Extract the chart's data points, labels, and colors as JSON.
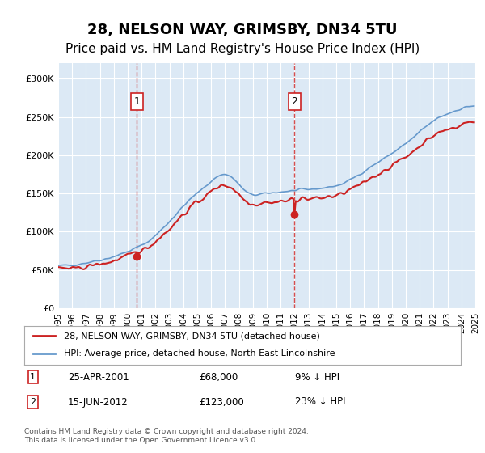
{
  "title": "28, NELSON WAY, GRIMSBY, DN34 5TU",
  "subtitle": "Price paid vs. HM Land Registry's House Price Index (HPI)",
  "title_fontsize": 13,
  "subtitle_fontsize": 11,
  "background_color": "#ffffff",
  "plot_bg_color": "#dce9f5",
  "grid_color": "#ffffff",
  "ylim": [
    0,
    320000
  ],
  "yticks": [
    0,
    50000,
    100000,
    150000,
    200000,
    250000,
    300000
  ],
  "ytick_labels": [
    "£0",
    "£50K",
    "£100K",
    "£150K",
    "£200K",
    "£250K",
    "£300K"
  ],
  "hpi_color": "#6699cc",
  "price_color": "#cc2222",
  "marker1_date_idx": 68,
  "marker2_date_idx": 204,
  "marker1_label": "1",
  "marker2_label": "2",
  "marker1_price": 68000,
  "marker2_price": 123000,
  "legend_line1": "28, NELSON WAY, GRIMSBY, DN34 5TU (detached house)",
  "legend_line2": "HPI: Average price, detached house, North East Lincolnshire",
  "ann1_date": "25-APR-2001",
  "ann1_price": "£68,000",
  "ann1_pct": "9% ↓ HPI",
  "ann2_date": "15-JUN-2012",
  "ann2_price": "£123,000",
  "ann2_pct": "23% ↓ HPI",
  "footer": "Contains HM Land Registry data © Crown copyright and database right 2024.\nThis data is licensed under the Open Government Licence v3.0."
}
